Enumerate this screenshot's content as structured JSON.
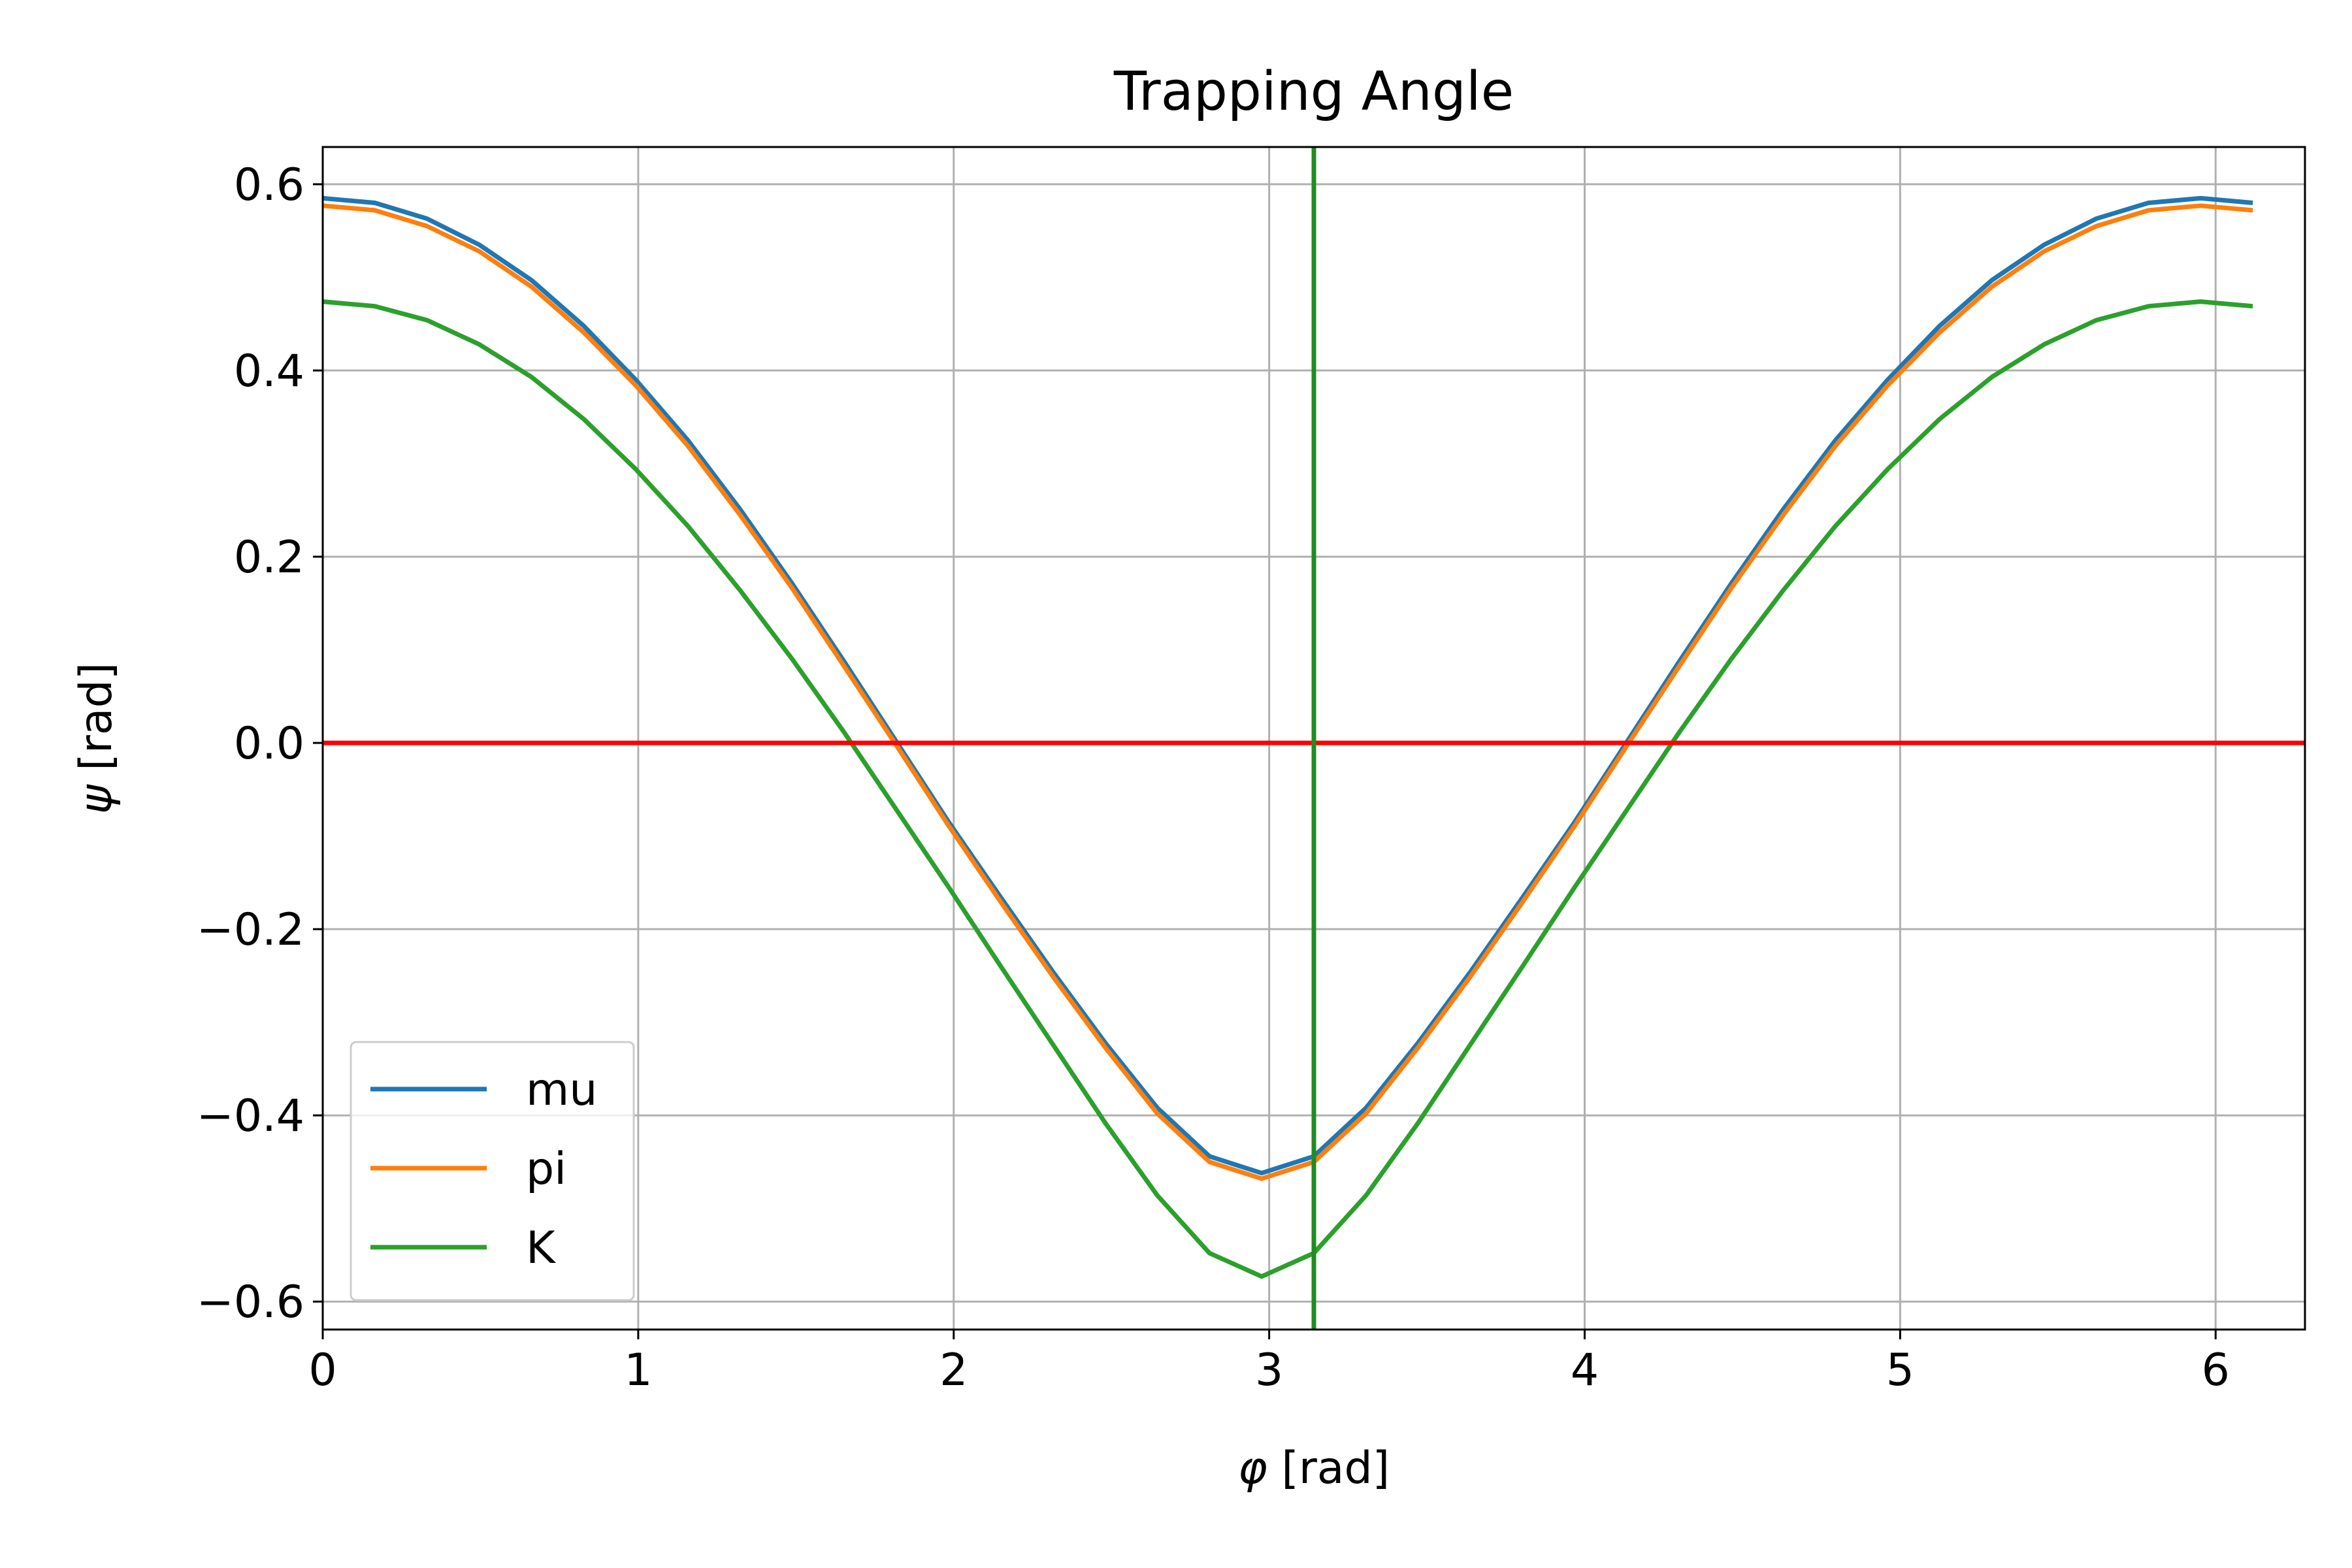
{
  "chart_data": {
    "type": "line",
    "title": "Trapping Angle",
    "xlabel_symbol": "φ",
    "xlabel_unit": "[rad]",
    "ylabel_symbol": "ψ",
    "ylabel_unit": "[rad]",
    "xlim": [
      0,
      6.2832
    ],
    "ylim": [
      -0.63,
      0.64
    ],
    "xticks": [
      0,
      1,
      2,
      3,
      4,
      5,
      6
    ],
    "xtick_labels": [
      "0",
      "1",
      "2",
      "3",
      "4",
      "5",
      "6"
    ],
    "yticks": [
      -0.6,
      -0.4,
      -0.2,
      0.0,
      0.2,
      0.4,
      0.6
    ],
    "ytick_labels": [
      "−0.6",
      "−0.4",
      "−0.2",
      "0.0",
      "0.2",
      "0.4",
      "0.6"
    ],
    "grid": true,
    "legend_position": "lower-left",
    "x": [
      0.0,
      0.1653,
      0.3307,
      0.496,
      0.6614,
      0.8267,
      0.9921,
      1.1574,
      1.3228,
      1.4881,
      1.6535,
      1.8188,
      1.9842,
      2.1495,
      2.3149,
      2.4802,
      2.6456,
      2.8109,
      2.9762,
      3.1416,
      3.3069,
      3.4723,
      3.6376,
      3.803,
      3.9683,
      4.1337,
      4.299,
      4.4644,
      4.6297,
      4.7951,
      4.9604,
      5.1258,
      5.2911,
      5.4565,
      5.6218,
      5.7872,
      5.9525,
      6.1178
    ],
    "series": [
      {
        "name": "mu",
        "color": "#1f77b4",
        "values": [
          0.585,
          0.58,
          0.563,
          0.535,
          0.497,
          0.448,
          0.39,
          0.325,
          0.251,
          0.171,
          0.087,
          0.001,
          -0.085,
          -0.166,
          -0.246,
          -0.322,
          -0.392,
          -0.444,
          -0.462,
          -0.444,
          -0.392,
          -0.322,
          -0.246,
          -0.166,
          -0.085,
          0.001,
          0.087,
          0.171,
          0.251,
          0.325,
          0.39,
          0.448,
          0.497,
          0.535,
          0.563,
          0.58,
          0.585,
          0.58
        ]
      },
      {
        "name": "pi",
        "color": "#ff7f0e",
        "values": [
          0.577,
          0.572,
          0.555,
          0.528,
          0.49,
          0.441,
          0.384,
          0.319,
          0.245,
          0.166,
          0.082,
          -0.003,
          -0.089,
          -0.171,
          -0.251,
          -0.327,
          -0.398,
          -0.45,
          -0.468,
          -0.45,
          -0.398,
          -0.327,
          -0.251,
          -0.171,
          -0.089,
          -0.003,
          0.082,
          0.166,
          0.245,
          0.319,
          0.384,
          0.441,
          0.49,
          0.528,
          0.555,
          0.572,
          0.577,
          0.572
        ]
      },
      {
        "name": "K",
        "color": "#2ca02c",
        "values": [
          0.474,
          0.469,
          0.454,
          0.428,
          0.393,
          0.348,
          0.294,
          0.233,
          0.164,
          0.09,
          0.011,
          -0.072,
          -0.155,
          -0.24,
          -0.324,
          -0.408,
          -0.486,
          -0.548,
          -0.573,
          -0.548,
          -0.486,
          -0.408,
          -0.324,
          -0.24,
          -0.155,
          -0.072,
          0.011,
          0.09,
          0.164,
          0.233,
          0.294,
          0.348,
          0.393,
          0.428,
          0.454,
          0.469,
          0.474,
          0.469
        ]
      }
    ],
    "reference_lines": [
      {
        "orientation": "horizontal",
        "value": 0.0,
        "color": "#ff0000"
      },
      {
        "orientation": "vertical",
        "value": 3.1416,
        "color": "#228b22"
      }
    ]
  }
}
